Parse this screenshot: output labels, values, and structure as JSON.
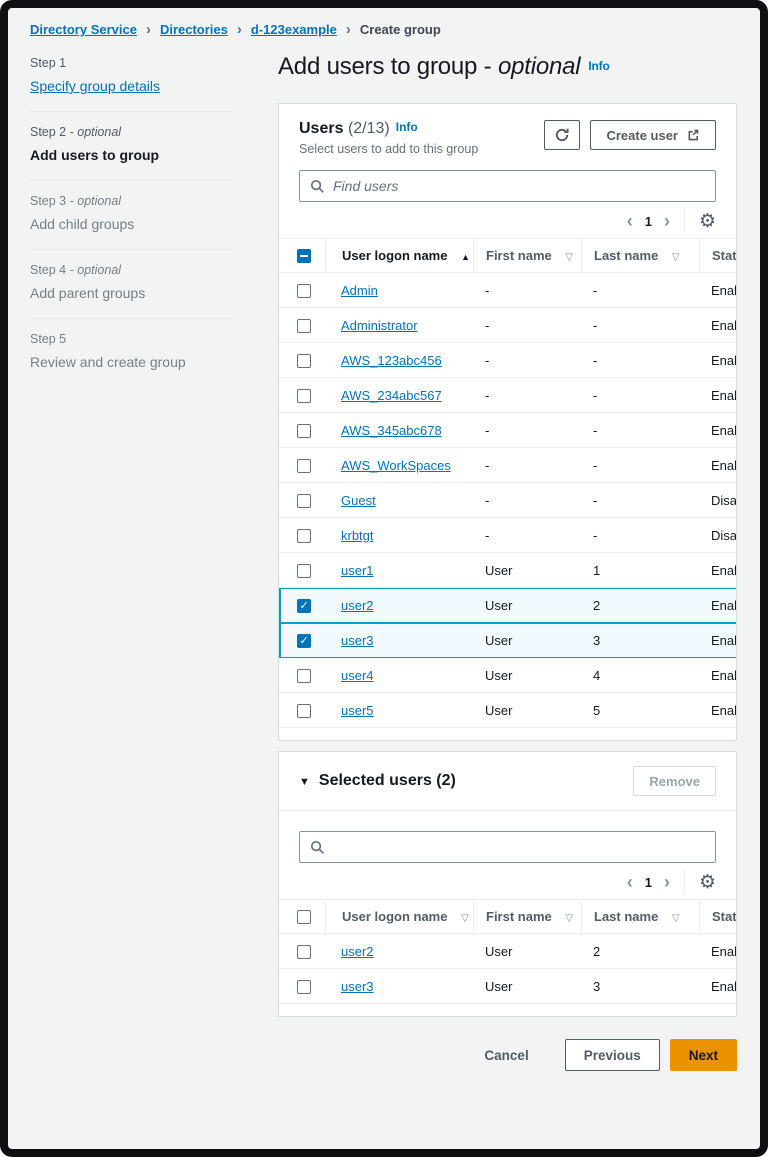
{
  "breadcrumb": {
    "items": [
      {
        "label": "Directory Service",
        "type": "link"
      },
      {
        "label": "Directories",
        "type": "link"
      },
      {
        "label": "d-123example",
        "type": "link"
      },
      {
        "label": "Create group",
        "type": "current"
      }
    ]
  },
  "wizard": {
    "steps": [
      {
        "label": "Step 1",
        "optional_text": "",
        "name": "Specify group details",
        "state": "visited"
      },
      {
        "label": "Step 2",
        "optional_text": "- optional",
        "name": "Add users to group",
        "state": "current"
      },
      {
        "label": "Step 3",
        "optional_text": "- optional",
        "name": "Add child groups",
        "state": "upcoming"
      },
      {
        "label": "Step 4",
        "optional_text": "- optional",
        "name": "Add parent groups",
        "state": "upcoming"
      },
      {
        "label": "Step 5",
        "optional_text": "",
        "name": "Review and create group",
        "state": "upcoming"
      }
    ]
  },
  "page_header": {
    "title": "Add users to group -",
    "title_suffix": "optional",
    "info": "Info"
  },
  "users_panel": {
    "title": "Users",
    "counter": "(2/13)",
    "info": "Info",
    "description": "Select users to add to this group",
    "create_user_label": "Create user",
    "search": {
      "placeholder": "Find users",
      "value": ""
    },
    "pagination": {
      "page": "1"
    },
    "table": {
      "columns": [
        {
          "label": "User logon name",
          "sort": "ascending"
        },
        {
          "label": "First name",
          "sort": "unsorted"
        },
        {
          "label": "Last name",
          "sort": "unsorted"
        },
        {
          "label": "Status",
          "sort": "unsorted"
        }
      ],
      "rows": [
        {
          "logon": "Admin",
          "first": "-",
          "last": "-",
          "status": "Enabled",
          "checked": false
        },
        {
          "logon": "Administrator",
          "first": "-",
          "last": "-",
          "status": "Enabled",
          "checked": false
        },
        {
          "logon": "AWS_123abc456",
          "first": "-",
          "last": "-",
          "status": "Enabled",
          "checked": false
        },
        {
          "logon": "AWS_234abc567",
          "first": "-",
          "last": "-",
          "status": "Enabled",
          "checked": false
        },
        {
          "logon": "AWS_345abc678",
          "first": "-",
          "last": "-",
          "status": "Enabled",
          "checked": false
        },
        {
          "logon": "AWS_WorkSpaces",
          "first": "-",
          "last": "-",
          "status": "Enabled",
          "checked": false
        },
        {
          "logon": "Guest",
          "first": "-",
          "last": "-",
          "status": "Disabled",
          "checked": false
        },
        {
          "logon": "krbtgt",
          "first": "-",
          "last": "-",
          "status": "Disabled",
          "checked": false
        },
        {
          "logon": "user1",
          "first": "User",
          "last": "1",
          "status": "Enabled",
          "checked": false
        },
        {
          "logon": "user2",
          "first": "User",
          "last": "2",
          "status": "Enabled",
          "checked": true
        },
        {
          "logon": "user3",
          "first": "User",
          "last": "3",
          "status": "Enabled",
          "checked": true
        },
        {
          "logon": "user4",
          "first": "User",
          "last": "4",
          "status": "Enabled",
          "checked": false
        },
        {
          "logon": "user5",
          "first": "User",
          "last": "5",
          "status": "Enabled",
          "checked": false
        }
      ],
      "select_all_state": "indeterminate"
    }
  },
  "selected_panel": {
    "title": "Selected users (2)",
    "remove_label": "Remove",
    "search": {
      "placeholder": "",
      "value": ""
    },
    "pagination": {
      "page": "1"
    },
    "table": {
      "columns": [
        {
          "label": "User logon name",
          "sort": "unsorted"
        },
        {
          "label": "First name",
          "sort": "unsorted"
        },
        {
          "label": "Last name",
          "sort": "unsorted"
        },
        {
          "label": "Status",
          "sort": "unsorted"
        }
      ],
      "rows": [
        {
          "logon": "user2",
          "first": "User",
          "last": "2",
          "status": "Enabled",
          "checked": false
        },
        {
          "logon": "user3",
          "first": "User",
          "last": "3",
          "status": "Enabled",
          "checked": false
        }
      ],
      "select_all_state": "unchecked"
    }
  },
  "actions": {
    "cancel": "Cancel",
    "previous": "Previous",
    "next": "Next"
  },
  "icons": {
    "breadcrumb_sep": "›",
    "pager_prev": "‹",
    "pager_next": "›",
    "gear": "⚙",
    "sort_ascending": "▲",
    "sort_unsorted": "▽",
    "collapse": "▼"
  },
  "colors": {
    "link": "#0073bb",
    "accent_orange": "#ec9200",
    "selected_row_bg": "#f1faff",
    "selected_row_border": "#00a1c9",
    "background": "#f2f3f3"
  }
}
